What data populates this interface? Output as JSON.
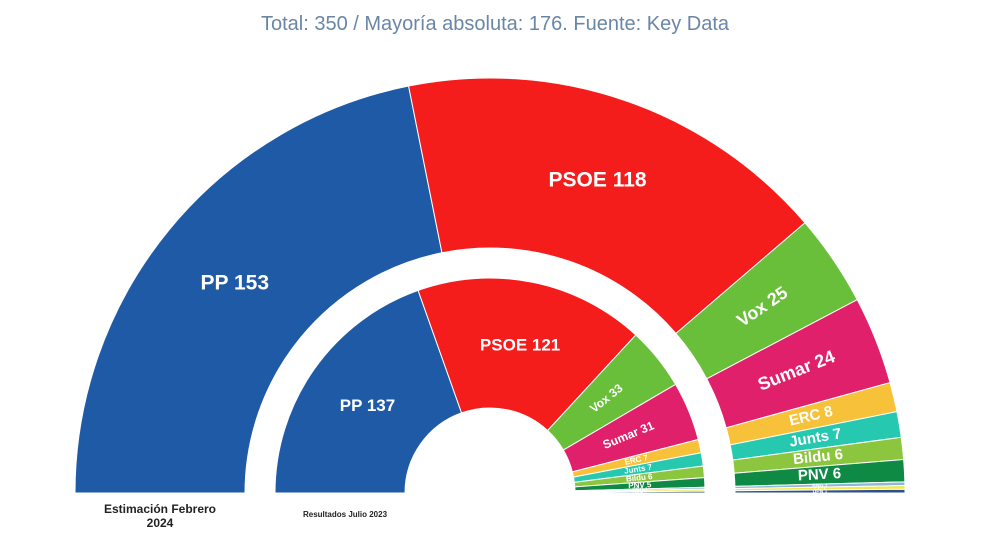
{
  "chart_data": {
    "type": "half-donut",
    "subtitle": "Total: 350 / Mayoría absoluta: 176. Fuente: Key Data",
    "series": [
      {
        "name": "Estimación Febrero 2024",
        "values": [
          153,
          118,
          25,
          24,
          8,
          7,
          6,
          6,
          1,
          1,
          1
        ],
        "value_labels": [
          "PP 153",
          "PSOE 118",
          "Vox 25",
          "Sumar 24",
          "ERC 8",
          "Junts 7",
          "Bildu 6",
          "PNV 6",
          "BNG 1",
          "CC 1",
          "UPN 1"
        ],
        "colors": [
          "#1f5aa6",
          "#f51c1c",
          "#6abf3a",
          "#e0206a",
          "#f7c23a",
          "#26c8b0",
          "#8cc63f",
          "#0e8a45",
          "#8fb8d6",
          "#f2e84a",
          "#2e4f8a"
        ]
      },
      {
        "name": "Resultados Julio 2023",
        "values": [
          137,
          121,
          33,
          31,
          7,
          7,
          6,
          5,
          1,
          1,
          1
        ],
        "value_labels": [
          "PP 137",
          "PSOE 121",
          "Vox 33",
          "Sumar 31",
          "ERC 7",
          "Junts 7",
          "Bildu 6",
          "PNV 5",
          "BNG 1",
          "CC 1",
          "UPN 1"
        ],
        "colors": [
          "#1f5aa6",
          "#f51c1c",
          "#6abf3a",
          "#e0206a",
          "#f7c23a",
          "#26c8b0",
          "#8cc63f",
          "#0e8a45",
          "#8fb8d6",
          "#f2e84a",
          "#2e4f8a"
        ]
      }
    ]
  }
}
